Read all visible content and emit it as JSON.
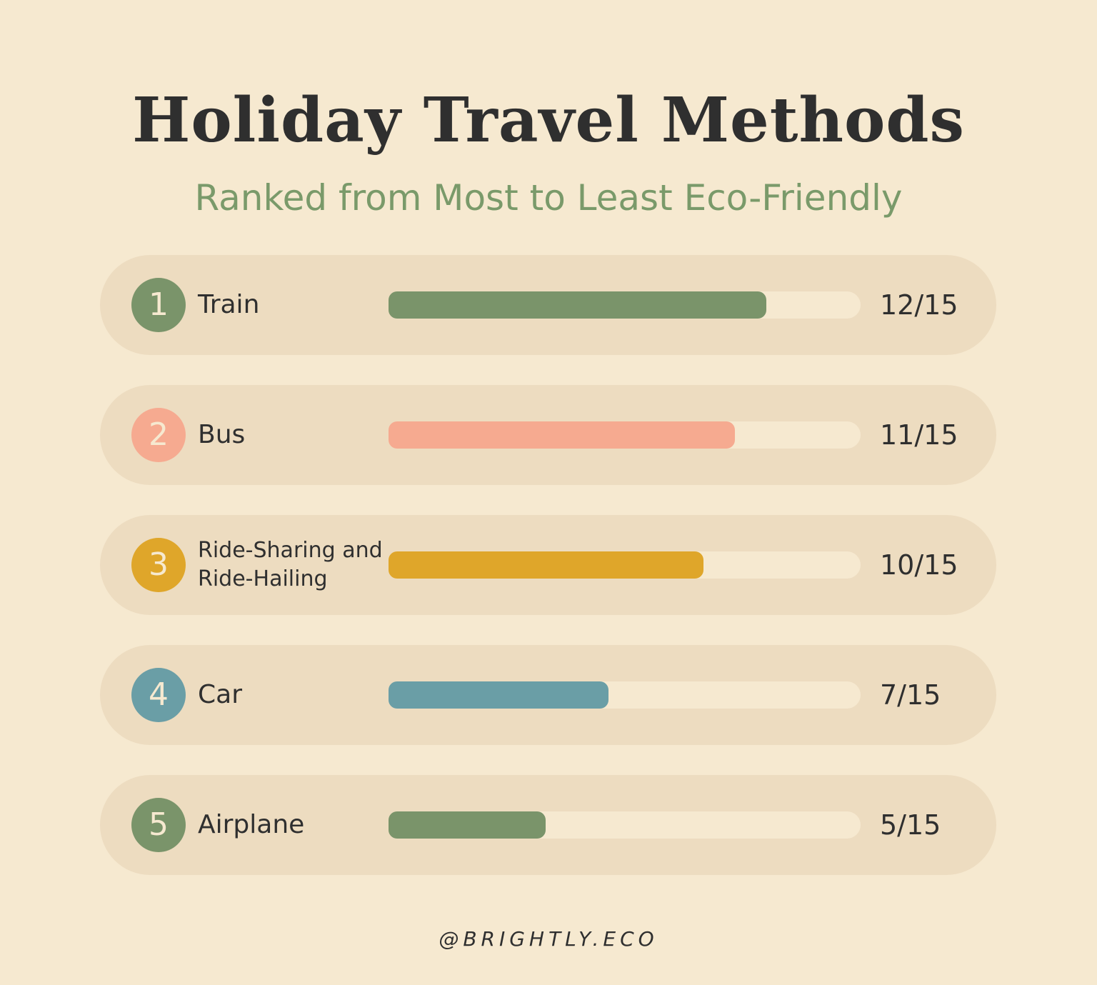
{
  "chart_data": {
    "type": "bar",
    "orientation": "horizontal",
    "title": "Holiday Travel Methods",
    "subtitle": "Ranked from Most to Least Eco-Friendly",
    "ranks": [
      1,
      2,
      3,
      4,
      5
    ],
    "categories": [
      "Train",
      "Bus",
      "Ride-Sharing and Ride-Hailing",
      "Car",
      "Airplane"
    ],
    "values": [
      12,
      11,
      10,
      7,
      5
    ],
    "value_labels": [
      "12/15",
      "11/15",
      "10/15",
      "7/15",
      "5/15"
    ],
    "colors": [
      "#7a946a",
      "#f6aa90",
      "#dfa62a",
      "#6a9ea6",
      "#7a946a"
    ],
    "xlim": [
      0,
      15
    ],
    "footer": "@BRIGHTLY.ECO"
  }
}
